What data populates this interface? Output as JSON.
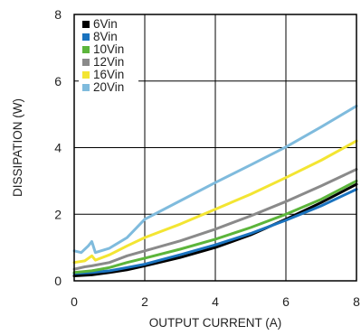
{
  "chart_data": {
    "type": "line",
    "title": "",
    "xlabel": "OUTPUT CURRENT (A)",
    "ylabel": "DISSIPATION (W)",
    "xlim": [
      0,
      8
    ],
    "ylim": [
      0,
      8
    ],
    "xticks": [
      0,
      2,
      4,
      6,
      8
    ],
    "yticks": [
      0,
      2,
      4,
      6,
      8
    ],
    "grid": true,
    "legend_position": "top-left",
    "series": [
      {
        "name": "6Vin",
        "color": "#000000",
        "points": [
          [
            0,
            0.15
          ],
          [
            0.5,
            0.18
          ],
          [
            1,
            0.25
          ],
          [
            1.5,
            0.33
          ],
          [
            2,
            0.45
          ],
          [
            3,
            0.7
          ],
          [
            4,
            1.0
          ],
          [
            5,
            1.38
          ],
          [
            6,
            1.85
          ],
          [
            7,
            2.35
          ],
          [
            8,
            2.9
          ]
        ]
      },
      {
        "name": "8Vin",
        "color": "#1a73bf",
        "points": [
          [
            0,
            0.22
          ],
          [
            0.5,
            0.25
          ],
          [
            1,
            0.3
          ],
          [
            1.5,
            0.4
          ],
          [
            2,
            0.5
          ],
          [
            3,
            0.78
          ],
          [
            4,
            1.08
          ],
          [
            5,
            1.42
          ],
          [
            6,
            1.82
          ],
          [
            7,
            2.25
          ],
          [
            8,
            2.75
          ]
        ]
      },
      {
        "name": "10Vin",
        "color": "#5cb53b",
        "points": [
          [
            0,
            0.25
          ],
          [
            0.5,
            0.3
          ],
          [
            1,
            0.4
          ],
          [
            1.5,
            0.55
          ],
          [
            2,
            0.68
          ],
          [
            3,
            0.95
          ],
          [
            4,
            1.25
          ],
          [
            5,
            1.6
          ],
          [
            6,
            2.0
          ],
          [
            7,
            2.45
          ],
          [
            8,
            3.0
          ]
        ]
      },
      {
        "name": "12Vin",
        "color": "#8a8a8a",
        "points": [
          [
            0,
            0.35
          ],
          [
            0.3,
            0.42
          ],
          [
            0.5,
            0.45
          ],
          [
            1,
            0.55
          ],
          [
            1.5,
            0.75
          ],
          [
            2,
            0.9
          ],
          [
            3,
            1.2
          ],
          [
            4,
            1.55
          ],
          [
            5,
            1.95
          ],
          [
            6,
            2.38
          ],
          [
            7,
            2.85
          ],
          [
            8,
            3.35
          ]
        ]
      },
      {
        "name": "16Vin",
        "color": "#f3e532",
        "points": [
          [
            0,
            0.55
          ],
          [
            0.3,
            0.6
          ],
          [
            0.5,
            0.75
          ],
          [
            0.6,
            0.62
          ],
          [
            1,
            0.78
          ],
          [
            1.5,
            1.05
          ],
          [
            2,
            1.3
          ],
          [
            3,
            1.7
          ],
          [
            4,
            2.15
          ],
          [
            5,
            2.6
          ],
          [
            6,
            3.1
          ],
          [
            7,
            3.62
          ],
          [
            8,
            4.2
          ]
        ]
      },
      {
        "name": "20Vin",
        "color": "#7fbbdd",
        "points": [
          [
            0,
            0.9
          ],
          [
            0.2,
            0.85
          ],
          [
            0.4,
            1.05
          ],
          [
            0.5,
            1.18
          ],
          [
            0.6,
            0.85
          ],
          [
            1,
            0.98
          ],
          [
            1.5,
            1.3
          ],
          [
            2,
            1.85
          ],
          [
            3,
            2.4
          ],
          [
            4,
            2.95
          ],
          [
            5,
            3.48
          ],
          [
            6,
            4.02
          ],
          [
            7,
            4.62
          ],
          [
            8,
            5.25
          ]
        ]
      }
    ]
  }
}
